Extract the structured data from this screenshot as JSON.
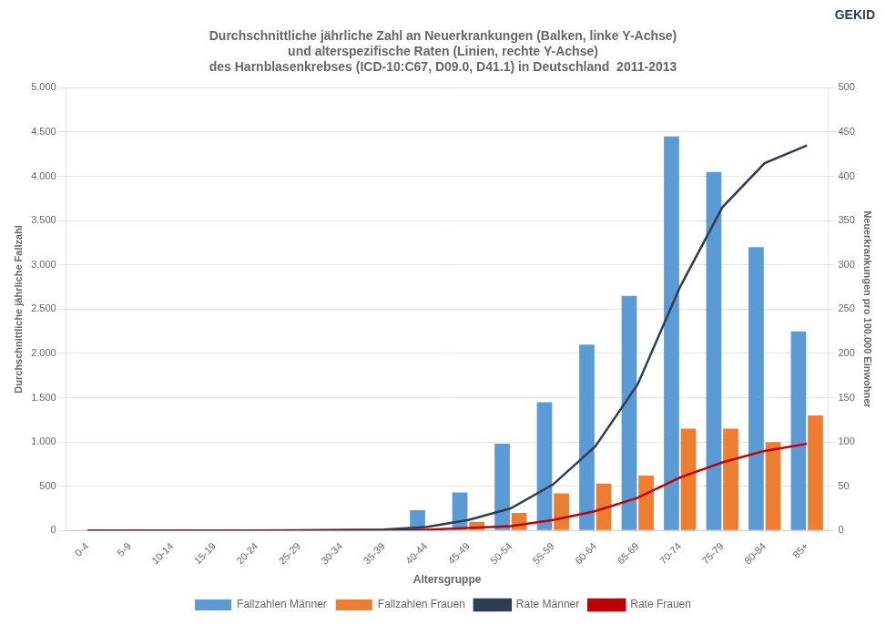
{
  "chart_data": {
    "type": "bar",
    "title": [
      "Durchschnittliche jährliche Zahl an Neuerkrankungen (Balken, linke Y-Achse)",
      "und alterspezifische Raten (Linien, rechte Y-Achse)",
      "des Harnblasenkrebses (ICD-10:C67, D09.0, D41.1) in Deutschland  2011-2013"
    ],
    "annotations": [
      {
        "text": "GEKID"
      }
    ],
    "xlabel": "Altersgruppe",
    "ylabel": "Durchschnittliche jährliche Fallzahl",
    "y2label": "Neuerkrankungen pro 100.000 Einwohner",
    "categories": [
      "0-4",
      "5-9",
      "10-14",
      "15-19",
      "20-24",
      "25-29",
      "30-34",
      "35-39",
      "40-44",
      "45-49",
      "50-54",
      "55-59",
      "60-64",
      "65-69",
      "70-74",
      "75-79",
      "80-84",
      "85+"
    ],
    "series": [
      {
        "name": "Fallzahlen Männer",
        "color": "#5b9bd5",
        "values": [
          5,
          5,
          5,
          5,
          5,
          5,
          10,
          15,
          230,
          430,
          980,
          1450,
          2100,
          2650,
          4450,
          4050,
          3200,
          2250
        ]
      },
      {
        "name": "Fallzahlen Frauen",
        "color": "#ed7d31",
        "values": [
          2,
          2,
          2,
          2,
          2,
          2,
          2,
          5,
          5,
          100,
          200,
          420,
          530,
          620,
          1150,
          1150,
          1000,
          1300
        ]
      },
      {
        "name": "Rate Männer",
        "type": "line",
        "axis": "y2",
        "color": "#2e3d52",
        "values": [
          0.1,
          0.1,
          0.1,
          0.1,
          0.2,
          0.3,
          0.6,
          1.2,
          4,
          12,
          25,
          52,
          95,
          165,
          275,
          365,
          415,
          435
        ]
      },
      {
        "name": "Rate Frauen",
        "type": "line",
        "axis": "y2",
        "color": "#c00000",
        "values": [
          0.1,
          0.1,
          0.1,
          0.1,
          0.1,
          0.2,
          0.3,
          0.5,
          1,
          3,
          5,
          12,
          22,
          37,
          60,
          77,
          90,
          98
        ]
      }
    ],
    "ylim": [
      0,
      5000
    ],
    "yticks": [
      0,
      500,
      {
        "value": 1000,
        "label": "1.000"
      },
      {
        "value": 1500,
        "label": "1.500"
      },
      {
        "value": 2000,
        "label": "2.000"
      },
      {
        "value": 2500,
        "label": "2.500"
      },
      {
        "value": 3000,
        "label": "3.000"
      },
      {
        "value": 3500,
        "label": "3.500"
      },
      {
        "value": 4000,
        "label": "4.000"
      },
      {
        "value": 4500,
        "label": "4.500"
      },
      {
        "value": 5000,
        "label": "5.000"
      }
    ],
    "y2lim": [
      0,
      500
    ],
    "y2ticks": [
      0,
      50,
      100,
      150,
      200,
      250,
      300,
      350,
      400,
      450,
      500
    ],
    "grid": true,
    "legend": "bottom"
  }
}
